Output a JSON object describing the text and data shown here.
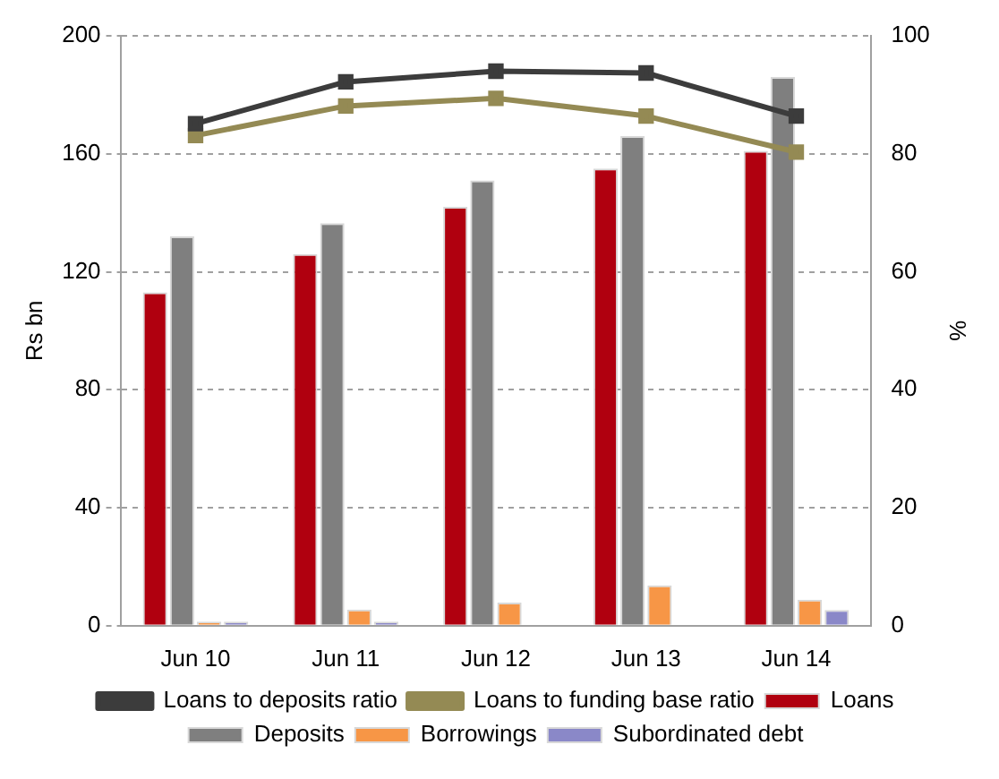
{
  "chart_data": {
    "type": "bar",
    "categories": [
      "Jun 10",
      "Jun 11",
      "Jun 12",
      "Jun 13",
      "Jun 14"
    ],
    "ylabel": "Rs bn",
    "y2label": "%",
    "ylim": [
      0,
      200
    ],
    "yticks": [
      0,
      40,
      80,
      120,
      160,
      200
    ],
    "y2lim": [
      0,
      100
    ],
    "y2ticks": [
      0,
      20,
      40,
      60,
      80,
      100
    ],
    "grid": "y",
    "legend": "bottom",
    "marker": "square",
    "series": [
      {
        "name": "Loans",
        "color": "#b0000f",
        "values": [
          113,
          126,
          142,
          155,
          161
        ]
      },
      {
        "name": "Deposits",
        "color": "#7f7f7f",
        "values": [
          132,
          136.5,
          151,
          166,
          186
        ]
      },
      {
        "name": "Borrowings",
        "color": "#f79646",
        "values": [
          1.4,
          5.5,
          7.8,
          13.7,
          8.8
        ]
      },
      {
        "name": "Subordinated debt",
        "color": "#8a88c8",
        "values": [
          1.4,
          1.4,
          0,
          0,
          5.3
        ]
      },
      {
        "name": "Loans to deposits ratio",
        "type": "line",
        "axis": "y2",
        "color": "#3c3c3c",
        "values": [
          85.1,
          92.2,
          94,
          93.7,
          86.4
        ]
      },
      {
        "name": "Loans to funding base ratio",
        "type": "line",
        "axis": "y2",
        "color": "#948a54",
        "values": [
          83.1,
          88.1,
          89.4,
          86.4,
          80.3
        ]
      }
    ]
  }
}
